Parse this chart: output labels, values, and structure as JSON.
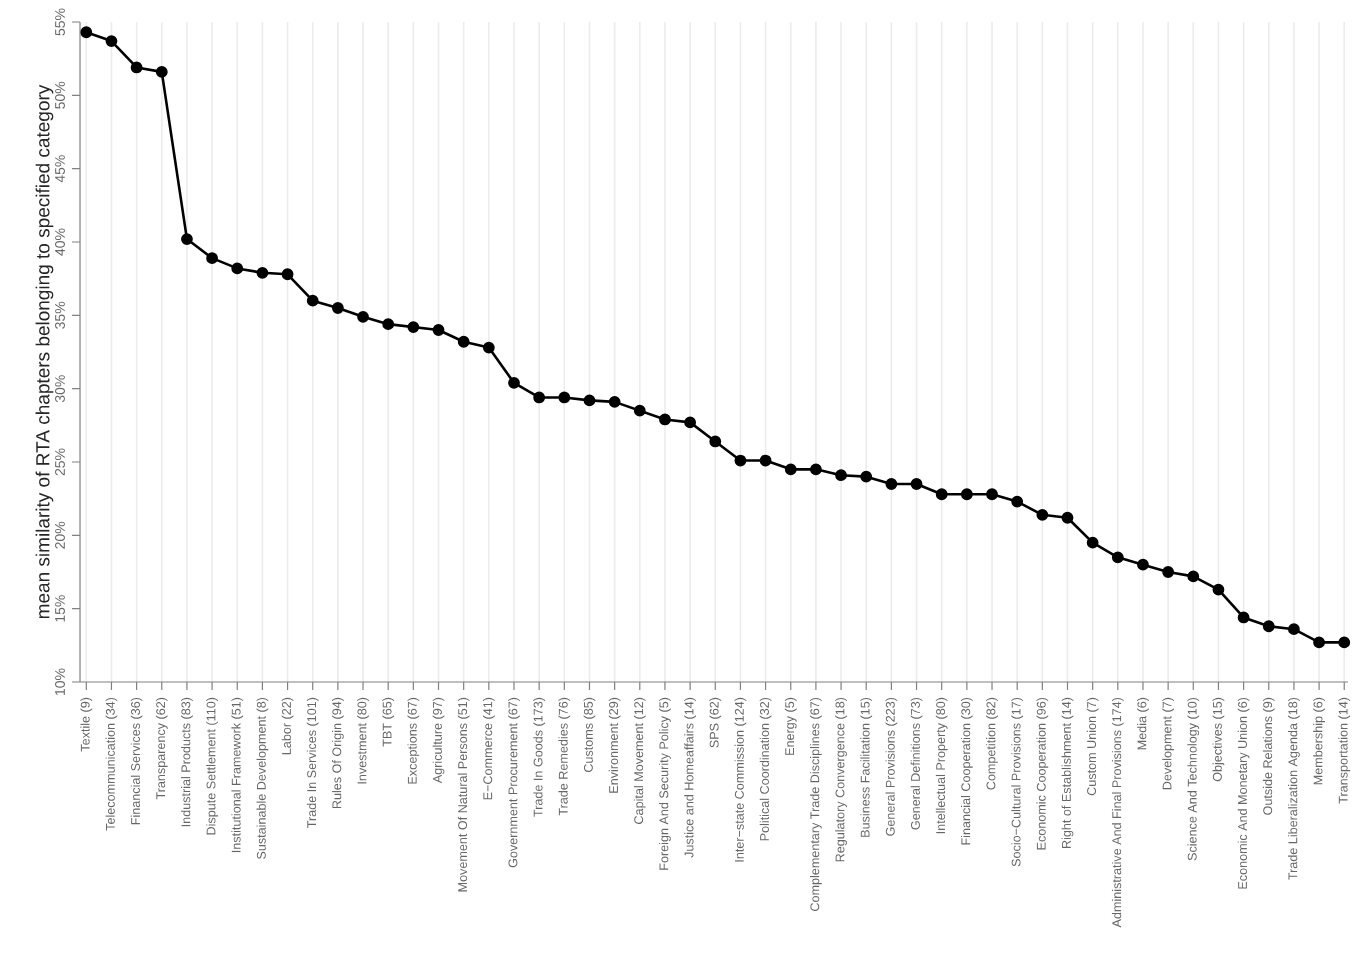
{
  "chart_data": {
    "type": "line",
    "ylabel": "mean similarity of RTA chapters belonging to specified category",
    "categories": [
      "Textile (9)",
      "Telecommunication (34)",
      "Financial Services (36)",
      "Transparency (62)",
      "Industrial Products (83)",
      "Dispute Settlement (110)",
      "Institutional Framework (51)",
      "Sustainable Development (8)",
      "Labor (22)",
      "Trade In Services (101)",
      "Rules Of Origin (94)",
      "Investment (80)",
      "TBT (65)",
      "Exceptions (67)",
      "Agriculture (97)",
      "Movement Of Natural Persons (51)",
      "E−Commerce (41)",
      "Government Procurement (67)",
      "Trade In Goods (173)",
      "Trade Remedies (76)",
      "Customs (85)",
      "Environment (29)",
      "Capital Movement (12)",
      "Foreign And Security Policy (5)",
      "Justice and Homeaffairs (14)",
      "SPS (62)",
      "Inter−state Commission (124)",
      "Political Coordination (32)",
      "Energy (5)",
      "Complementary Trade Disciplines (67)",
      "Regulatory Convergence (18)",
      "Business Facilitation (15)",
      "General Provisions (223)",
      "General Definitions (73)",
      "Intellectual Property (80)",
      "Financial Cooperation (30)",
      "Competition (82)",
      "Socio−Cultural Provisions (17)",
      "Economic Cooperation (96)",
      "Right of Establishment (14)",
      "Custom Union (7)",
      "Administrative And Final Provisions (174)",
      "Media (6)",
      "Development (7)",
      "Science And Technology (10)",
      "Objectives (15)",
      "Economic And Monetary Union (6)",
      "Outside Relations (9)",
      "Trade Liberalization Agenda (18)",
      "Membership (6)",
      "Transportation (14)"
    ],
    "series": [
      {
        "color": "#000000",
        "values": [
          54.3,
          53.7,
          51.9,
          51.6,
          40.2,
          38.9,
          38.2,
          37.9,
          37.8,
          36.0,
          35.5,
          34.9,
          34.4,
          34.2,
          34.0,
          33.2,
          32.8,
          30.4,
          29.4,
          29.4,
          29.2,
          29.1,
          28.5,
          27.9,
          27.7,
          26.4,
          25.1,
          25.1,
          24.5,
          24.5,
          24.1,
          24.0,
          23.5,
          23.5,
          22.8,
          22.8,
          22.8,
          22.3,
          21.4,
          21.2,
          19.5,
          18.5,
          18.0,
          17.5,
          17.2,
          16.3,
          14.4,
          13.8,
          13.6,
          12.7,
          12.7
        ]
      }
    ],
    "ylim": [
      10,
      55
    ],
    "yticks": [
      {
        "value": 10,
        "label": "10%"
      },
      {
        "value": 15,
        "label": "15%"
      },
      {
        "value": 20,
        "label": "20%"
      },
      {
        "value": 25,
        "label": "25%"
      },
      {
        "value": 30,
        "label": "30%"
      },
      {
        "value": 35,
        "label": "35%"
      },
      {
        "value": 40,
        "label": "40%"
      },
      {
        "value": 45,
        "label": "45%"
      },
      {
        "value": 50,
        "label": "50%"
      },
      {
        "value": 55,
        "label": "55%"
      }
    ],
    "grid": "x",
    "marker": "circle",
    "line_style": "solid"
  }
}
